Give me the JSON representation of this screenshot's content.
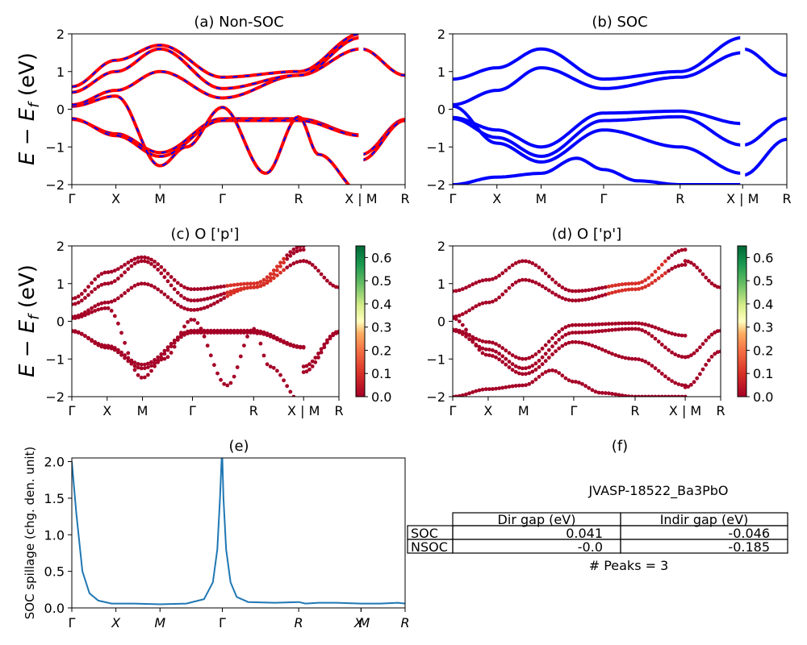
{
  "chart_data": [
    {
      "id": "a",
      "type": "line",
      "title": "(a) Non-SOC",
      "ylabel": "E − E_f (eV)",
      "ylim": [
        -2,
        2
      ],
      "yticks": [
        "−2",
        "−1",
        "0",
        "1",
        "2"
      ],
      "kpath_labels": [
        "Γ",
        "X",
        "M",
        "Γ",
        "R",
        "X | M",
        "R"
      ],
      "kpath_positions": [
        0,
        0.5,
        1.0,
        1.707,
        2.573,
        3.28,
        3.78
      ],
      "grid": false,
      "series": [
        {
          "x": [
            0,
            0.5,
            1.0,
            1.707,
            2.573,
            3.28
          ],
          "y": [
            -0.27,
            -0.65,
            -1.15,
            -0.25,
            -0.25,
            -0.68
          ]
        },
        {
          "x": [
            0,
            0.5,
            1.0,
            1.707,
            2.573,
            3.28
          ],
          "y": [
            -0.25,
            -0.7,
            -1.25,
            -0.3,
            -0.3,
            -0.7
          ]
        },
        {
          "x": [
            0,
            0.5,
            1.0,
            1.3,
            1.707,
            2.2,
            2.573,
            2.8,
            3.28
          ],
          "y": [
            0.08,
            0.35,
            -1.5,
            -1.0,
            0.05,
            -1.7,
            -0.2,
            -1.2,
            -2.2
          ]
        },
        {
          "x": [
            0,
            0.5,
            1.0,
            1.707,
            2.573,
            3.28
          ],
          "y": [
            0.12,
            0.5,
            1.0,
            0.3,
            0.9,
            1.6
          ]
        },
        {
          "x": [
            0,
            0.5,
            1.0,
            1.707,
            2.573,
            3.28
          ],
          "y": [
            0.45,
            1.0,
            1.6,
            0.55,
            0.9,
            1.9
          ]
        },
        {
          "x": [
            0,
            0.5,
            1.0,
            1.707,
            2.573,
            3.28
          ],
          "y": [
            0.6,
            1.3,
            1.7,
            0.85,
            1.0,
            2.0
          ]
        }
      ],
      "right_segment": [
        {
          "x": [
            3.28,
            3.78
          ],
          "y": [
            -1.2,
            -0.27
          ]
        },
        {
          "x": [
            3.28,
            3.78
          ],
          "y": [
            -1.35,
            -0.3
          ]
        },
        {
          "x": [
            3.28,
            3.78
          ],
          "y": [
            1.6,
            0.9
          ]
        }
      ]
    },
    {
      "id": "b",
      "type": "line",
      "title": "(b) SOC",
      "ylim": [
        -2,
        2
      ],
      "yticks": [
        "−2",
        "−1",
        "0",
        "1",
        "2"
      ],
      "kpath_labels": [
        "Γ",
        "X",
        "M",
        "Γ",
        "R",
        "X | M",
        "R"
      ],
      "kpath_positions": [
        0,
        0.5,
        1.0,
        1.707,
        2.573,
        3.28,
        3.78
      ],
      "grid": false,
      "series": [
        {
          "x": [
            0,
            0.5,
            1.0,
            1.707,
            2.573,
            3.28
          ],
          "y": [
            -0.22,
            -0.55,
            -1.0,
            -0.1,
            -0.05,
            -0.38
          ]
        },
        {
          "x": [
            0,
            0.5,
            1.0,
            1.707,
            2.573,
            3.28
          ],
          "y": [
            -0.25,
            -0.75,
            -1.25,
            -0.3,
            -0.2,
            -0.95
          ]
        },
        {
          "x": [
            0,
            0.5,
            1.0,
            1.707,
            2.573,
            3.28
          ],
          "y": [
            0.08,
            -0.9,
            -1.4,
            -0.55,
            -1.0,
            -1.7
          ]
        },
        {
          "x": [
            0,
            0.5,
            1.0,
            1.707,
            2.573,
            3.28
          ],
          "y": [
            0.12,
            0.5,
            1.1,
            0.55,
            0.85,
            1.5
          ]
        },
        {
          "x": [
            0,
            0.5,
            1.0,
            1.707,
            2.573,
            3.28
          ],
          "y": [
            0.8,
            1.1,
            1.6,
            0.8,
            1.0,
            1.9
          ]
        },
        {
          "x": [
            0,
            0.5,
            1.0,
            1.4,
            1.707,
            2.1,
            2.573
          ],
          "y": [
            -2.0,
            -1.8,
            -1.7,
            -1.3,
            -1.6,
            -1.9,
            -2.0
          ]
        }
      ],
      "right_segment": [
        {
          "x": [
            3.28,
            3.78
          ],
          "y": [
            -0.95,
            -0.25
          ]
        },
        {
          "x": [
            3.28,
            3.78
          ],
          "y": [
            -1.75,
            -0.8
          ]
        },
        {
          "x": [
            3.28,
            3.78
          ],
          "y": [
            1.6,
            0.9
          ]
        }
      ]
    },
    {
      "id": "c",
      "type": "scatter",
      "title": "(c)  O ['p']",
      "ylabel": "E − E_f (eV)",
      "ylim": [
        -2,
        2
      ],
      "yticks": [
        "−2",
        "−1",
        "0",
        "1",
        "2"
      ],
      "kpath_labels": [
        "Γ",
        "X",
        "M",
        "Γ",
        "R",
        "X | M",
        "R"
      ],
      "kpath_positions": [
        0,
        0.5,
        1.0,
        1.707,
        2.573,
        3.28,
        3.78
      ],
      "colorbar": {
        "min": 0.0,
        "max": 0.65,
        "ticks": [
          "0.0",
          "0.1",
          "0.2",
          "0.3",
          "0.4",
          "0.5",
          "0.6"
        ],
        "cmap": "RdYlGn"
      },
      "band_source": "a"
    },
    {
      "id": "d",
      "type": "scatter",
      "title": "(d) O ['p']",
      "ylim": [
        -2,
        2
      ],
      "yticks": [
        "−2",
        "−1",
        "0",
        "1",
        "2"
      ],
      "kpath_labels": [
        "Γ",
        "X",
        "M",
        "Γ",
        "R",
        "X | M",
        "R"
      ],
      "kpath_positions": [
        0,
        0.5,
        1.0,
        1.707,
        2.573,
        3.28,
        3.78
      ],
      "colorbar": {
        "min": 0.0,
        "max": 0.65,
        "ticks": [
          "0.0",
          "0.1",
          "0.2",
          "0.3",
          "0.4",
          "0.5",
          "0.6"
        ],
        "cmap": "RdYlGn"
      },
      "band_source": "b"
    },
    {
      "id": "e",
      "type": "line",
      "title": "(e)",
      "ylabel": "SOC spillage (chg. den. unit)",
      "ylim": [
        0,
        2.05
      ],
      "yticks": [
        "0.0",
        "0.5",
        "1.0",
        "1.5",
        "2.0"
      ],
      "xticks": [
        "Γ",
        "X",
        "M",
        "Γ",
        "R",
        "X",
        "M",
        "R"
      ],
      "xtick_positions": [
        0,
        0.5,
        1.0,
        1.707,
        2.573,
        3.28,
        3.28,
        3.78
      ],
      "x": [
        0,
        0.05,
        0.12,
        0.2,
        0.3,
        0.45,
        0.7,
        1.0,
        1.3,
        1.5,
        1.6,
        1.65,
        1.68,
        1.7,
        1.707,
        1.72,
        1.75,
        1.8,
        1.87,
        2.0,
        2.3,
        2.573,
        2.65,
        2.8,
        3.0,
        3.28,
        3.5,
        3.7,
        3.78
      ],
      "y": [
        2.0,
        1.3,
        0.5,
        0.2,
        0.1,
        0.06,
        0.06,
        0.05,
        0.06,
        0.12,
        0.35,
        0.8,
        1.5,
        2.05,
        2.05,
        1.5,
        0.8,
        0.35,
        0.15,
        0.08,
        0.07,
        0.08,
        0.06,
        0.07,
        0.07,
        0.06,
        0.06,
        0.07,
        0.06
      ],
      "color": "#1f77b4"
    },
    {
      "id": "f",
      "type": "table",
      "title": "(f)",
      "caption": "JVASP-18522_Ba3PbO",
      "columns": [
        "Dir gap (eV)",
        "Indir gap (eV)"
      ],
      "rows": [
        {
          "label": "SOC",
          "values": [
            "0.041",
            "-0.046"
          ]
        },
        {
          "label": "NSOC",
          "values": [
            "-0.0",
            "-0.185"
          ]
        }
      ],
      "footer": "# Peaks = 3"
    }
  ],
  "colors": {
    "nonsoc_line": "#ff0000",
    "nonsoc_dash": "#0000ff",
    "soc_line": "#0000ff",
    "spillage_line": "#1f77b4"
  }
}
